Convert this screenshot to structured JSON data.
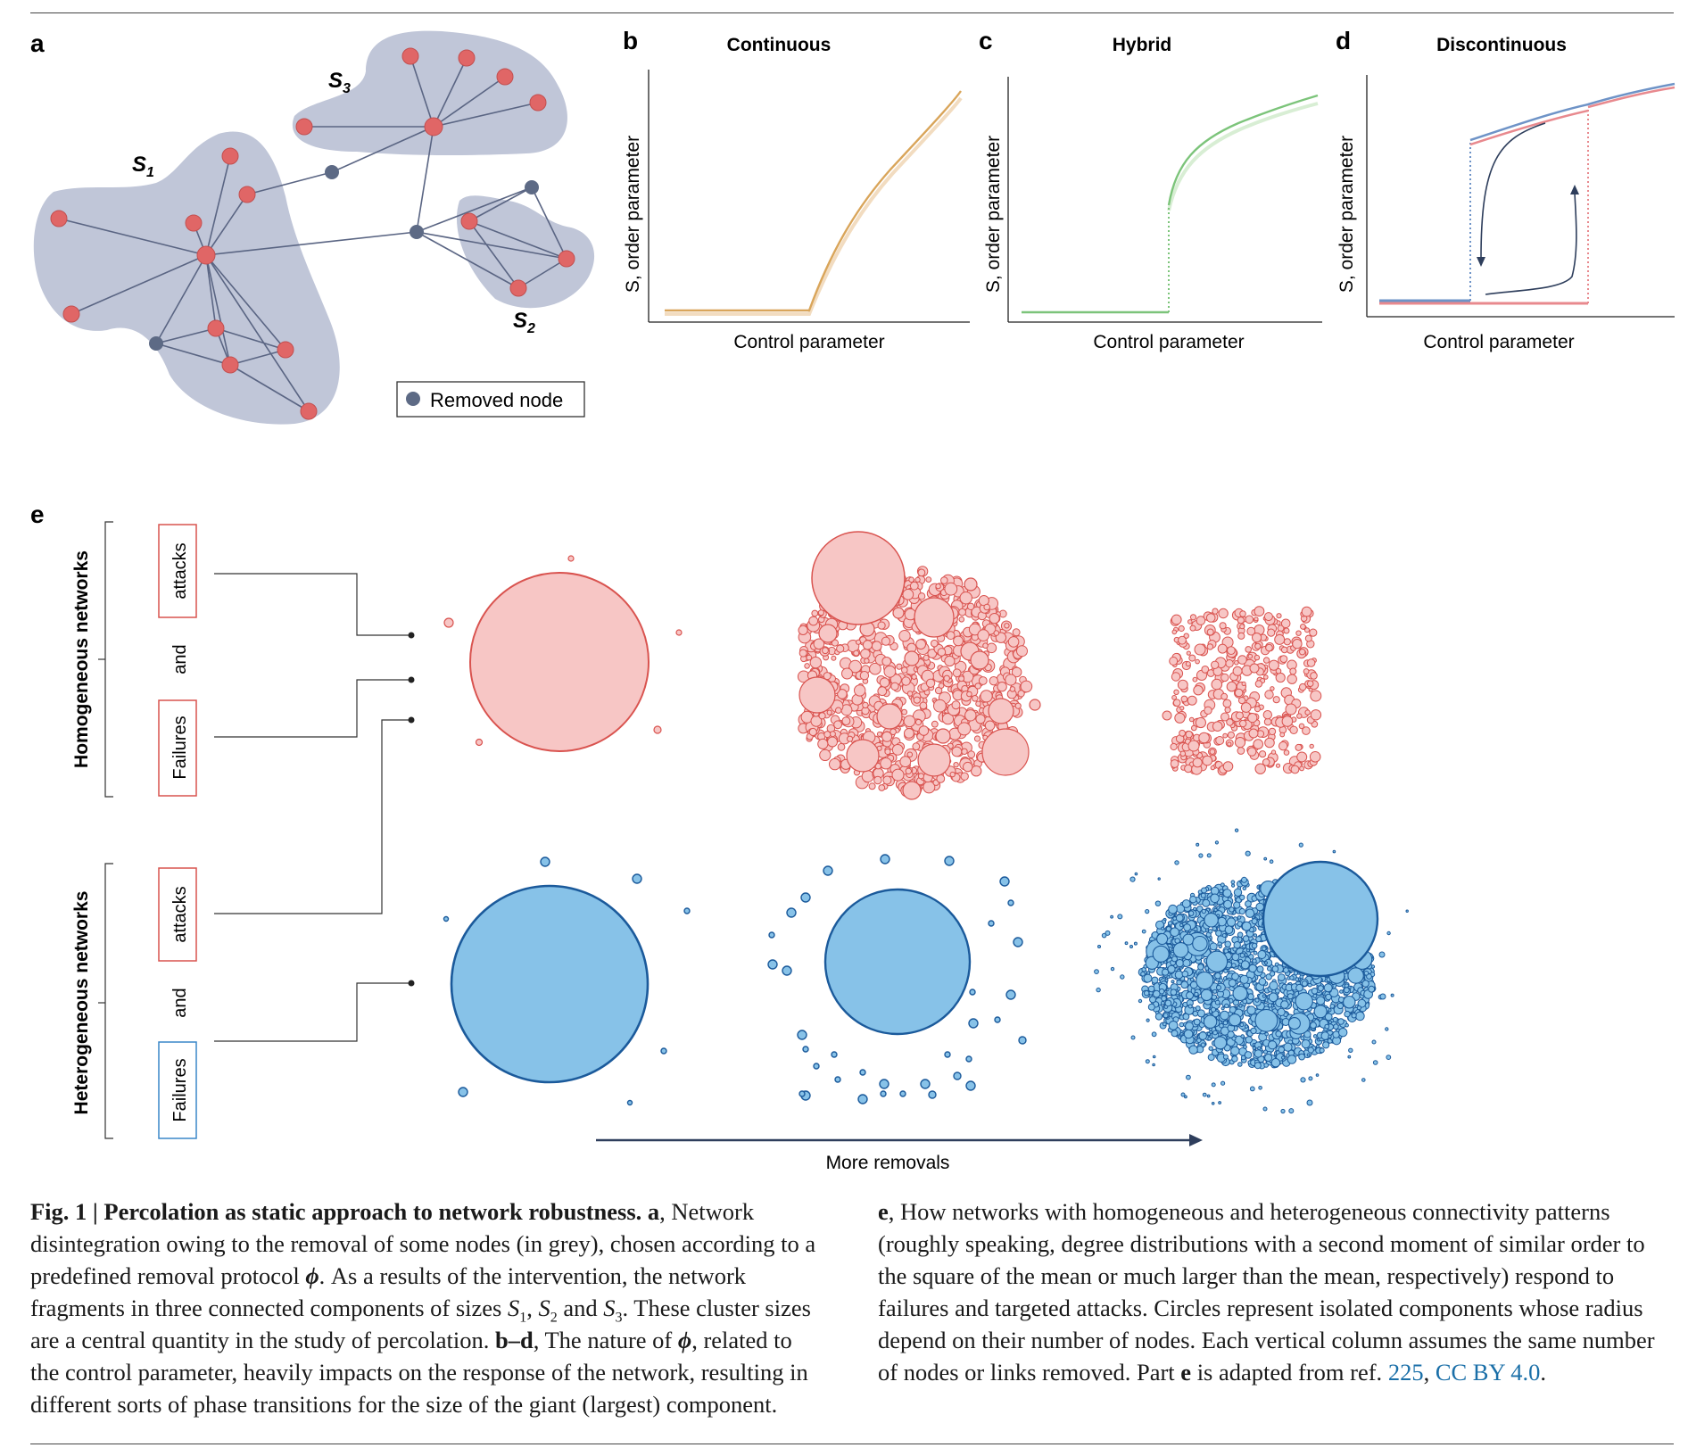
{
  "figure": {
    "panel_labels": {
      "a": "a",
      "b": "b",
      "c": "c",
      "d": "d",
      "e": "e"
    },
    "panel_a": {
      "cluster_labels": [
        "S",
        "1",
        "S",
        "2",
        "S",
        "3"
      ],
      "legend": "Removed node",
      "colors": {
        "node": "#e06666",
        "removed": "#5d6a85",
        "blob": "#c0c6d8",
        "edge": "#5a6583"
      }
    },
    "panel_b": {
      "title": "Continuous",
      "xlabel": "Control parameter",
      "ylabel": "S, order parameter",
      "curve_color": "#d9a55a"
    },
    "panel_c": {
      "title": "Hybrid",
      "xlabel": "Control parameter",
      "ylabel": "S, order parameter",
      "curve_color": "#7cc47a"
    },
    "panel_d": {
      "title": "Discontinuous",
      "xlabel": "Control parameter",
      "ylabel": "S, order parameter",
      "colors": [
        "#6e93c7",
        "#e8898e"
      ]
    },
    "panel_e": {
      "row_labels": [
        "Homogeneous networks",
        "Heterogeneous networks"
      ],
      "box_labels": [
        "attacks",
        "and",
        "Failures",
        "attacks",
        "and",
        "Failures"
      ],
      "arrow_label": "More removals",
      "colors": {
        "homog_fill": "#f7c6c5",
        "homog_stroke": "#d9534f",
        "heter_fill": "#87c2e8",
        "heter_stroke": "#1b5a9b"
      }
    }
  },
  "caption": {
    "fig_label": "Fig. 1 | ",
    "title": "Percolation as static approach to network robustness.",
    "part_a": " a",
    "t1": ", Network disintegration owing to the removal of some nodes (in grey), chosen according to a predefined removal protocol ",
    "phi": "ϕ",
    "t2": ". As a results of the intervention, the network fragments in three connected components of sizes ",
    "s": "S",
    "sub1": "1",
    "sub2": "2",
    "sub3": "3",
    "comma": ", ",
    "and": " and ",
    "t3": ". These cluster sizes are a central quantity in the study of percolation. ",
    "part_bd": "b–d",
    "t4": ", The nature of ",
    "t5": ", related to the control parameter, heavily impacts on the response of the network, resulting in different sorts of phase transitions for the size of the giant (largest) component. ",
    "part_e": "e",
    "t6": ", How networks with homogeneous and heterogeneous connectivity patterns (roughly speaking, degree distributions with a second moment of similar order to the square of the mean or much larger than the mean, respectively) respond to failures and targeted attacks. Circles represent isolated components whose radius depend on their number of nodes. Each vertical column assumes the same number of nodes or links removed. Part ",
    "part_e2": "e",
    "t7": " is adapted from ref. ",
    "ref": "225",
    "sep": ", ",
    "license": "CC BY 4.0",
    "end": "."
  }
}
